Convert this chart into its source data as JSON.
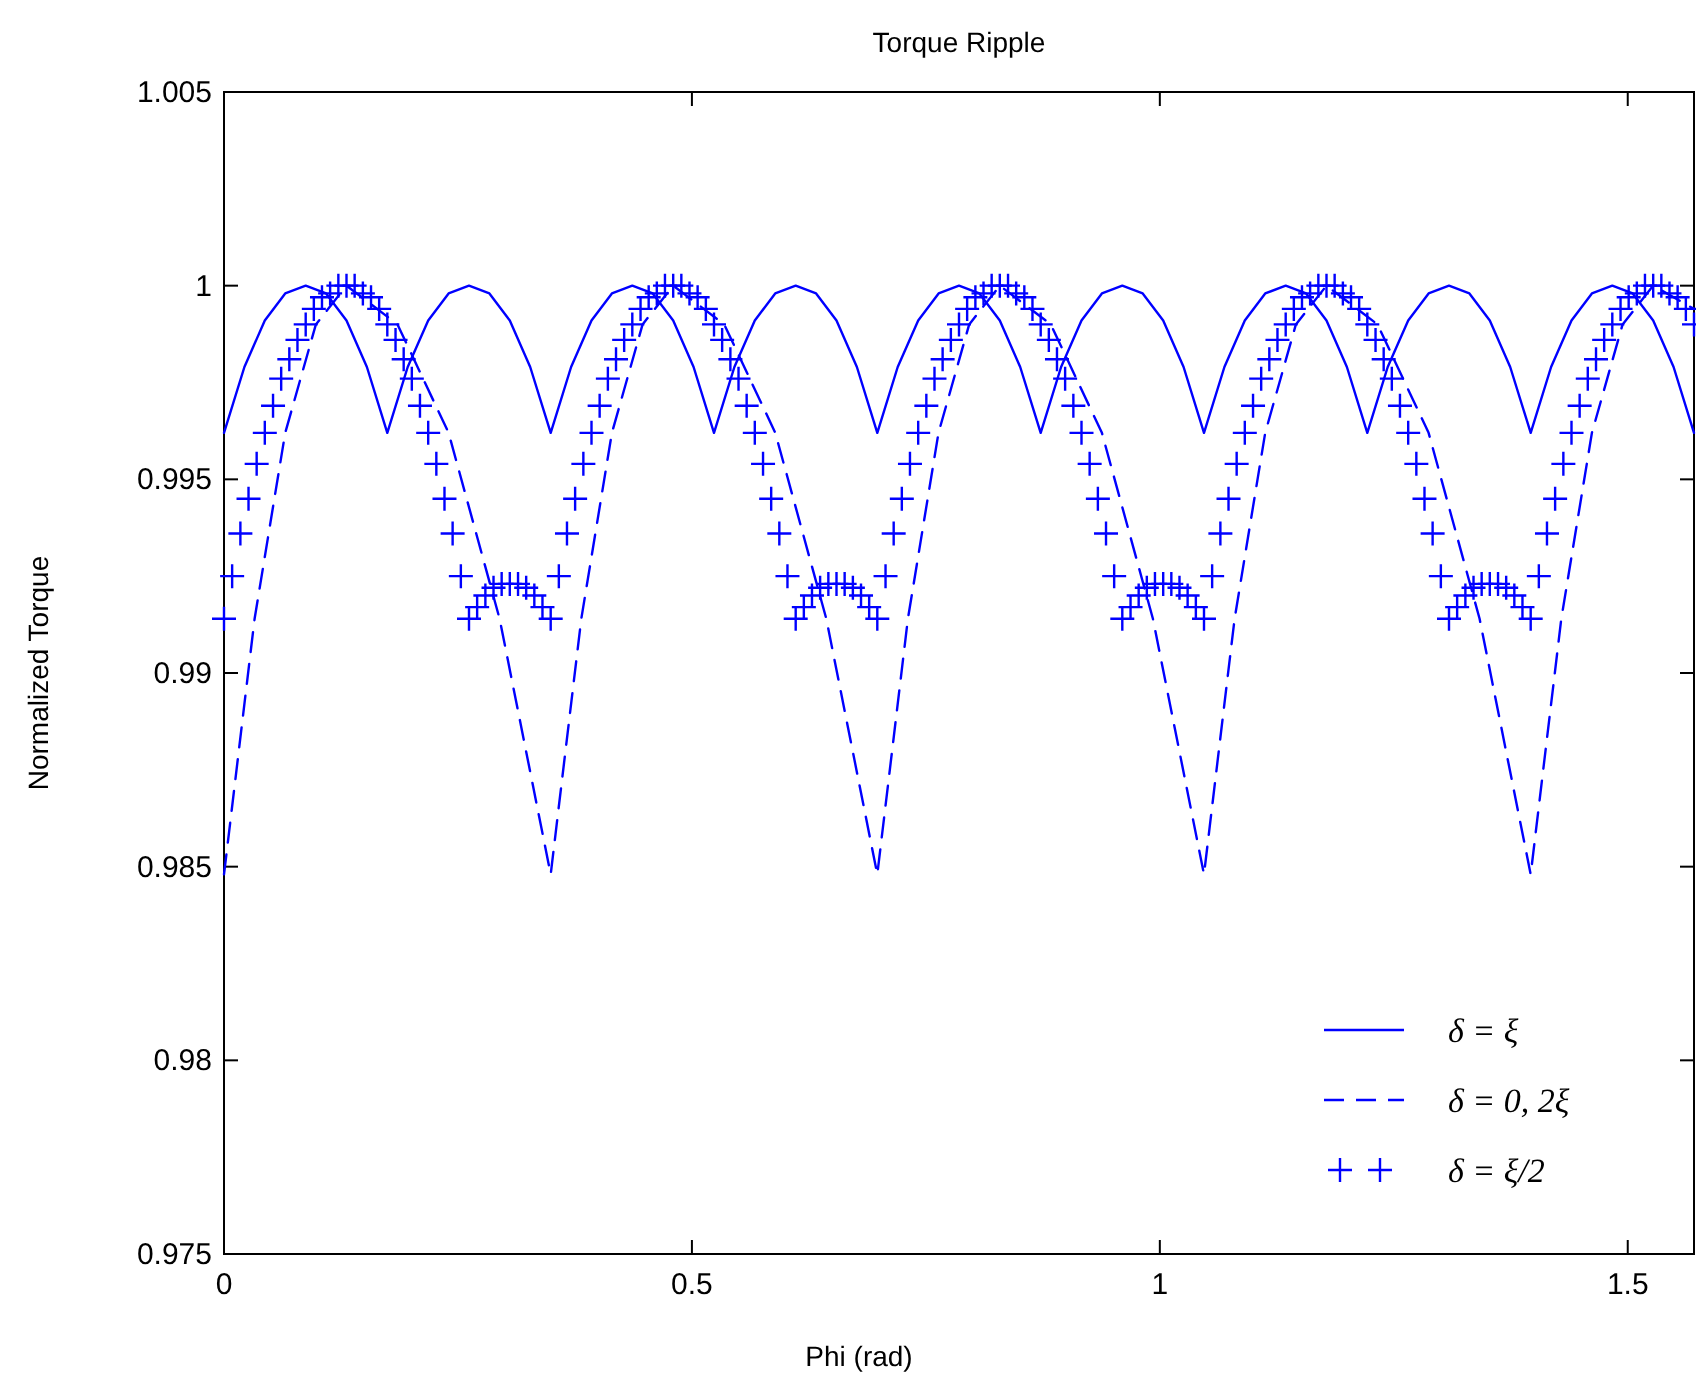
{
  "chart_data": {
    "type": "line",
    "title": "Torque Ripple",
    "xlabel": "Phi (rad)",
    "ylabel": "Normalized Torque",
    "xlim": [
      0,
      1.5708
    ],
    "xticks": [
      0,
      0.5,
      1,
      1.5
    ],
    "ylim": [
      0.975,
      1.005
    ],
    "yticks": [
      0.975,
      0.98,
      0.985,
      0.99,
      0.995,
      1,
      1.005
    ],
    "legend": "bottom right",
    "series": [
      {
        "name": "δ = ξ",
        "line_style": "solid",
        "marker": "none",
        "color": "#0000ff",
        "x": [
          0,
          0.0218,
          0.0436,
          0.0654,
          0.0873,
          0.1091,
          0.1309,
          0.1527,
          0.1745,
          0.1963,
          0.2182,
          0.24,
          0.2618,
          0.2836,
          0.3054,
          0.3272,
          0.3491,
          0.3709,
          0.3927,
          0.4145,
          0.4363,
          0.4581,
          0.48,
          0.5018,
          0.5236,
          0.5454,
          0.5672,
          0.589,
          0.6109,
          0.6327,
          0.6545,
          0.6763,
          0.6981,
          0.7199,
          0.7418,
          0.7636,
          0.7854,
          0.8072,
          0.829,
          0.8508,
          0.8727,
          0.8945,
          0.9163,
          0.9381,
          0.9599,
          0.9817,
          1.0036,
          1.0254,
          1.0472,
          1.069,
          1.0908,
          1.1126,
          1.1345,
          1.1563,
          1.1781,
          1.1999,
          1.2217,
          1.2435,
          1.2654,
          1.2872,
          1.309,
          1.3308,
          1.3526,
          1.3744,
          1.3963,
          1.4181,
          1.4399,
          1.4617,
          1.4835,
          1.5053,
          1.5272,
          1.549,
          1.5708
        ],
        "values": [
          0.9962,
          0.9979,
          0.9991,
          0.9998,
          1,
          0.9998,
          0.9991,
          0.9979,
          0.9962,
          0.9979,
          0.9991,
          0.9998,
          1,
          0.9998,
          0.9991,
          0.9979,
          0.9962,
          0.9979,
          0.9991,
          0.9998,
          1,
          0.9998,
          0.9991,
          0.9979,
          0.9962,
          0.9979,
          0.9991,
          0.9998,
          1,
          0.9998,
          0.9991,
          0.9979,
          0.9962,
          0.9979,
          0.9991,
          0.9998,
          1,
          0.9998,
          0.9991,
          0.9979,
          0.9962,
          0.9979,
          0.9991,
          0.9998,
          1,
          0.9998,
          0.9991,
          0.9979,
          0.9962,
          0.9979,
          0.9991,
          0.9998,
          1,
          0.9998,
          0.9991,
          0.9979,
          0.9962,
          0.9979,
          0.9991,
          0.9998,
          1,
          0.9998,
          0.9991,
          0.9979,
          0.9962,
          0.9979,
          0.9991,
          0.9998,
          1,
          0.9998,
          0.9991,
          0.9979,
          0.9962
        ]
      },
      {
        "name": "δ = 0, 2ξ",
        "line_style": "dashed",
        "marker": "none",
        "color": "#0000ff",
        "x": [
          0,
          0.0327,
          0.0654,
          0.0982,
          0.1309,
          0.1854,
          0.24,
          0.2945,
          0.3491,
          0.3818,
          0.4145,
          0.4473,
          0.48,
          0.5345,
          0.5891,
          0.6436,
          0.6981,
          0.7308,
          0.7635,
          0.7963,
          0.829,
          0.8835,
          0.9381,
          0.9926,
          1.0472,
          1.0799,
          1.1126,
          1.1454,
          1.1781,
          1.2326,
          1.2872,
          1.3417,
          1.3963,
          1.429,
          1.4617,
          1.4945,
          1.5272,
          1.5708
        ],
        "values": [
          0.9848,
          0.9914,
          0.9962,
          0.999,
          1,
          0.999,
          0.9962,
          0.9914,
          0.9848,
          0.9914,
          0.9962,
          0.999,
          1,
          0.999,
          0.9962,
          0.9914,
          0.9848,
          0.9914,
          0.9962,
          0.999,
          1,
          0.999,
          0.9962,
          0.9914,
          0.9848,
          0.9914,
          0.9962,
          0.999,
          1,
          0.999,
          0.9962,
          0.9914,
          0.9848,
          0.9914,
          0.9962,
          0.999,
          1,
          0.9994
        ]
      },
      {
        "name": "δ = ξ/2",
        "type": "scatter",
        "marker": "cross",
        "color": "#0000ff",
        "x": [
          0,
          0.0087,
          0.0175,
          0.0262,
          0.0349,
          0.0436,
          0.0524,
          0.0611,
          0.0698,
          0.0785,
          0.0873,
          0.096,
          0.1047,
          0.1134,
          0.1222,
          0.1309,
          0.1396,
          0.1484,
          0.1571,
          0.1658,
          0.1745,
          0.1833,
          0.192,
          0.2007,
          0.2094,
          0.2182,
          0.2269,
          0.2356,
          0.2443,
          0.2531,
          0.2618,
          0.2705,
          0.2793,
          0.288,
          0.2967,
          0.3054,
          0.3142,
          0.3229,
          0.3316,
          0.3403,
          0.3491,
          0.3578,
          0.3665,
          0.3752,
          0.384,
          0.3927,
          0.4014,
          0.4102,
          0.4189,
          0.4276,
          0.4363,
          0.4451,
          0.4538,
          0.4625,
          0.4712,
          0.48,
          0.4887,
          0.4974,
          0.5061,
          0.5149,
          0.5236,
          0.5323,
          0.5411,
          0.5498,
          0.5585,
          0.5672,
          0.576,
          0.5847,
          0.5934,
          0.6021,
          0.6109,
          0.6196,
          0.6283,
          0.637,
          0.6458,
          0.6545,
          0.6632,
          0.672,
          0.6807,
          0.6894,
          0.6981,
          0.7069,
          0.7156,
          0.7243,
          0.733,
          0.7418,
          0.7505,
          0.7592,
          0.7679,
          0.7767,
          0.7854,
          0.7941,
          0.8029,
          0.8116,
          0.8203,
          0.829,
          0.8378,
          0.8465,
          0.8552,
          0.8639,
          0.8727,
          0.8814,
          0.8901,
          0.8988,
          0.9076,
          0.9163,
          0.925,
          0.9338,
          0.9425,
          0.9512,
          0.9599,
          0.9687,
          0.9774,
          0.9861,
          0.9948,
          1.0036,
          1.0123,
          1.021,
          1.0297,
          1.0385,
          1.0472,
          1.0559,
          1.0647,
          1.0734,
          1.0821,
          1.0908,
          1.0996,
          1.1083,
          1.117,
          1.1257,
          1.1345,
          1.1432,
          1.1519,
          1.1606,
          1.1694,
          1.1781,
          1.1868,
          1.1956,
          1.2043,
          1.213,
          1.2217,
          1.2305,
          1.2392,
          1.2479,
          1.2566,
          1.2654,
          1.2741,
          1.2828,
          1.2915,
          1.3003,
          1.309,
          1.3177,
          1.3265,
          1.3352,
          1.3439,
          1.3526,
          1.3614,
          1.3701,
          1.3788,
          1.3875,
          1.3963,
          1.405,
          1.4137,
          1.4224,
          1.4312,
          1.4399,
          1.4486,
          1.4573,
          1.4661,
          1.4748,
          1.4835,
          1.4923,
          1.501,
          1.5097,
          1.5184,
          1.5272,
          1.5359,
          1.5446,
          1.5533,
          1.5621,
          1.5708
        ],
        "values": [
          0.9914,
          0.9925,
          0.9936,
          0.9945,
          0.9954,
          0.9962,
          0.9969,
          0.9976,
          0.9981,
          0.9986,
          0.999,
          0.9994,
          0.9997,
          0.9998,
          1,
          1,
          1,
          0.9998,
          0.9997,
          0.9994,
          0.999,
          0.9986,
          0.9981,
          0.9976,
          0.9969,
          0.9962,
          0.9954,
          0.9945,
          0.9936,
          0.9925,
          0.9914,
          0.9917,
          0.992,
          0.9922,
          0.9923,
          0.9923,
          0.9923,
          0.9922,
          0.992,
          0.9917,
          0.9914,
          0.9925,
          0.9936,
          0.9945,
          0.9954,
          0.9962,
          0.9969,
          0.9976,
          0.9981,
          0.9986,
          0.999,
          0.9994,
          0.9997,
          0.9998,
          1,
          1,
          1,
          0.9998,
          0.9997,
          0.9994,
          0.999,
          0.9986,
          0.9981,
          0.9976,
          0.9969,
          0.9962,
          0.9954,
          0.9945,
          0.9936,
          0.9925,
          0.9914,
          0.9917,
          0.992,
          0.9922,
          0.9923,
          0.9923,
          0.9923,
          0.9922,
          0.992,
          0.9917,
          0.9914,
          0.9925,
          0.9936,
          0.9945,
          0.9954,
          0.9962,
          0.9969,
          0.9976,
          0.9981,
          0.9986,
          0.999,
          0.9994,
          0.9997,
          0.9998,
          1,
          1,
          1,
          0.9998,
          0.9997,
          0.9994,
          0.999,
          0.9986,
          0.9981,
          0.9976,
          0.9969,
          0.9962,
          0.9954,
          0.9945,
          0.9936,
          0.9925,
          0.9914,
          0.9917,
          0.992,
          0.9922,
          0.9923,
          0.9923,
          0.9923,
          0.9922,
          0.992,
          0.9917,
          0.9914,
          0.9925,
          0.9936,
          0.9945,
          0.9954,
          0.9962,
          0.9969,
          0.9976,
          0.9981,
          0.9986,
          0.999,
          0.9994,
          0.9997,
          0.9998,
          1,
          1,
          1,
          0.9998,
          0.9997,
          0.9994,
          0.999,
          0.9986,
          0.9981,
          0.9976,
          0.9969,
          0.9962,
          0.9954,
          0.9945,
          0.9936,
          0.9925,
          0.9914,
          0.9917,
          0.992,
          0.9922,
          0.9923,
          0.9923,
          0.9923,
          0.9922,
          0.992,
          0.9917,
          0.9914,
          0.9925,
          0.9936,
          0.9945,
          0.9954,
          0.9962,
          0.9969,
          0.9976,
          0.9981,
          0.9986,
          0.999,
          0.9994,
          0.9997,
          0.9998,
          1,
          1,
          1,
          0.9998,
          0.9997,
          0.9994,
          0.999
        ]
      }
    ]
  }
}
